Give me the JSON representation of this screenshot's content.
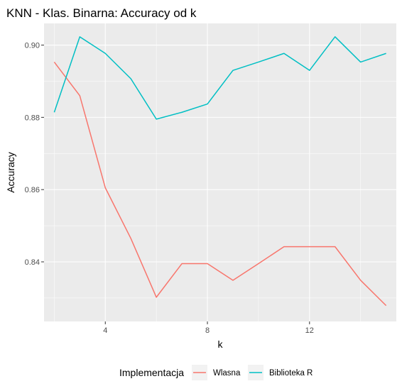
{
  "chart_data": {
    "type": "line",
    "title": "KNN - Klas. Binarna: Accuracy od k",
    "xlabel": "k",
    "ylabel": "Accuracy",
    "xlim": [
      1.6,
      15.4
    ],
    "ylim": [
      0.8235,
      0.906
    ],
    "x_ticks": [
      4,
      8,
      12
    ],
    "x_tick_labels": [
      "4",
      "8",
      "12"
    ],
    "y_ticks": [
      0.84,
      0.86,
      0.88,
      0.9
    ],
    "y_tick_labels": [
      "0.84",
      "0.86",
      "0.88",
      "0.90"
    ],
    "grid": true,
    "legend_position": "bottom",
    "legend_title": "Implementacja",
    "x": [
      2,
      3,
      4,
      5,
      6,
      7,
      8,
      9,
      10,
      11,
      12,
      13,
      14,
      15
    ],
    "series": [
      {
        "name": "Wlasna",
        "color": "#F8766D",
        "values": [
          0.8953,
          0.886,
          0.8605,
          0.8465,
          0.8302,
          0.8395,
          0.8395,
          0.8349,
          0.8395,
          0.8442,
          0.8442,
          0.8442,
          0.8349,
          0.8279
        ]
      },
      {
        "name": "Biblioteka R",
        "color": "#00BFC4",
        "values": [
          0.8814,
          0.9023,
          0.8977,
          0.8907,
          0.8795,
          0.8814,
          0.8837,
          0.893,
          0.8953,
          0.8977,
          0.893,
          0.9023,
          0.8953,
          0.8977
        ]
      }
    ],
    "panel_background": "#EBEBEB",
    "grid_color": "#FFFFFF"
  }
}
